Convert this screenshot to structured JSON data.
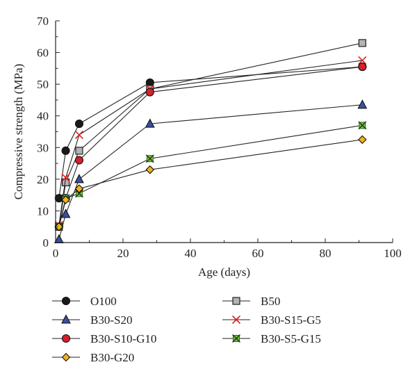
{
  "chart_data": {
    "type": "line",
    "title": "",
    "xlabel": "Age (days)",
    "ylabel": "Compressive strength (MPa)",
    "xlim": [
      0,
      100
    ],
    "ylim": [
      0,
      70
    ],
    "xticks": [
      0,
      20,
      40,
      60,
      80,
      100
    ],
    "yticks": [
      0,
      10,
      20,
      30,
      40,
      50,
      60,
      70
    ],
    "grid": false,
    "legend_position": "bottom",
    "series": [
      {
        "name": "O100",
        "marker": "circle",
        "fill": "#1a1a1a",
        "x": [
          1,
          3,
          7,
          28,
          91
        ],
        "y": [
          14,
          29,
          37.5,
          50.5,
          55.5
        ]
      },
      {
        "name": "B50",
        "marker": "square",
        "fill": "#b3b3b3",
        "x": [
          1,
          3,
          7,
          28,
          91
        ],
        "y": [
          5,
          19,
          29,
          48.5,
          63
        ]
      },
      {
        "name": "B30-S20",
        "marker": "triangle",
        "fill": "#3a4fa3",
        "x": [
          1,
          3,
          7,
          28,
          91
        ],
        "y": [
          1,
          9,
          20,
          37.5,
          43.5
        ]
      },
      {
        "name": "B30-S15-G5",
        "marker": "x",
        "fill": "#e02020",
        "x": [
          1,
          3,
          7,
          28,
          91
        ],
        "y": [
          5.5,
          20.5,
          34,
          48.5,
          57.5
        ]
      },
      {
        "name": "B30-S10-G10",
        "marker": "circle",
        "fill": "#d6202a",
        "x": [
          1,
          3,
          7,
          28,
          91
        ],
        "y": [
          5,
          14,
          26,
          47.5,
          55.5
        ]
      },
      {
        "name": "B30-S5-G15",
        "marker": "xbox",
        "fill": "#7fbf3f",
        "x": [
          1,
          3,
          7,
          28,
          91
        ],
        "y": [
          5,
          14,
          15.5,
          26.5,
          37
        ]
      },
      {
        "name": "B30-G20",
        "marker": "diamond",
        "fill": "#f2b21a",
        "x": [
          1,
          3,
          7,
          28,
          91
        ],
        "y": [
          5,
          13.5,
          17,
          23,
          32.5
        ]
      }
    ]
  }
}
